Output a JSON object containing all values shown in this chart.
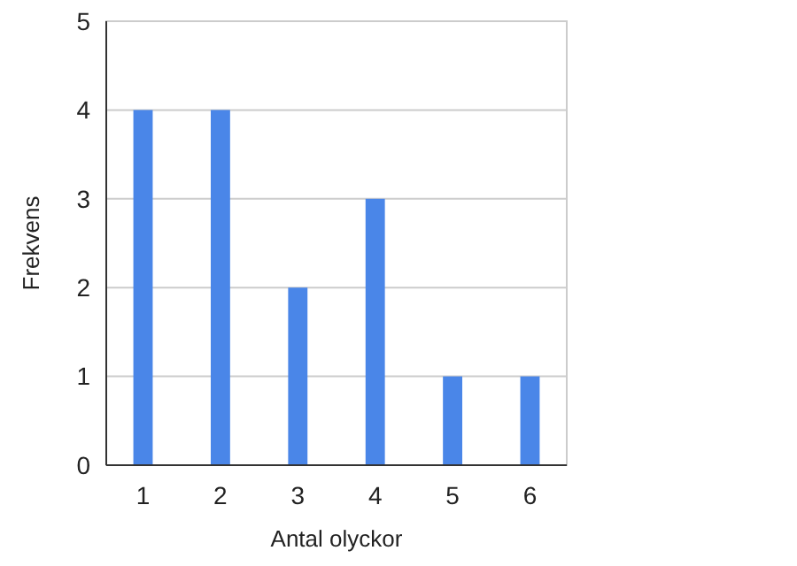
{
  "chart_data": {
    "type": "bar",
    "xlabel": "Antal olyckor",
    "ylabel": "Frekvens",
    "categories": [
      "1",
      "2",
      "3",
      "4",
      "5",
      "6"
    ],
    "values": [
      4,
      4,
      2,
      3,
      1,
      1
    ],
    "color": "#4a86e8",
    "ylim": [
      0,
      5
    ],
    "yticks": [
      0,
      1,
      2,
      3,
      4,
      5
    ],
    "grid": "y"
  }
}
